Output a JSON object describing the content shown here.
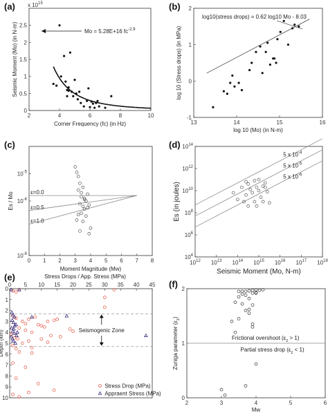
{
  "panel_labels": [
    "(a)",
    "(b)",
    "(c)",
    "(d)",
    "(e)",
    "(f)"
  ],
  "chart_data": [
    {
      "id": "a",
      "type": "scatter",
      "xlabel": "Corner Frequency (fc) (in Hz)",
      "ylabel": "Seismic Moment (Mo) (in N-m)",
      "xlim": [
        2,
        10
      ],
      "ylim": [
        0,
        3000000000000000.0
      ],
      "xticks": [
        "2",
        "4",
        "6",
        "8",
        "10"
      ],
      "yticks": [
        "0",
        "0.5",
        "1",
        "1.5",
        "2",
        "2.5"
      ],
      "top_label": "x 10",
      "top_label_exp": "15",
      "annotation": "Mo = 5.28E+16 fc",
      "annotation_exp": "-2.9",
      "x": [
        3.6,
        3.8,
        4.0,
        4.1,
        4.3,
        4.4,
        4.5,
        4.5,
        4.6,
        4.6,
        4.7,
        4.8,
        4.9,
        5.0,
        5.1,
        5.2,
        5.3,
        5.4,
        5.6,
        5.8,
        5.9,
        6.0,
        6.1,
        6.2,
        6.3,
        6.4,
        6.5,
        6.6,
        7.0,
        7.4
      ],
      "y": [
        0.78,
        0.73,
        2.5,
        1.0,
        1.6,
        0.85,
        0.42,
        0.6,
        0.58,
        0.68,
        1.7,
        0.55,
        0.42,
        0.9,
        0.5,
        0.33,
        0.55,
        0.22,
        0.12,
        0.28,
        0.65,
        0.1,
        0.26,
        0.2,
        0.08,
        0.22,
        0.28,
        0.12,
        0.08,
        0.42
      ],
      "fit": {
        "coef": 52.8,
        "exp": -2.9
      }
    },
    {
      "id": "b",
      "type": "scatter",
      "xlabel": "log 10 (Mo)  (in N-m)",
      "ylabel": "log 10 (Stress drops) (in MPa)",
      "xlim": [
        13,
        16
      ],
      "ylim": [
        -1,
        2
      ],
      "xticks": [
        "13",
        "14",
        "15",
        "16"
      ],
      "yticks": [
        "-1",
        "0",
        "1",
        "2"
      ],
      "annotation": "log10(stress drops) = 0.62 log10 Mo - 8.03",
      "x": [
        13.45,
        13.7,
        13.78,
        13.85,
        13.9,
        13.95,
        14.05,
        14.12,
        14.3,
        14.35,
        14.45,
        14.55,
        14.6,
        14.68,
        14.72,
        14.78,
        14.85,
        14.88,
        14.92,
        14.95,
        15.02,
        15.1,
        15.2,
        15.3,
        15.35,
        15.45
      ],
      "y": [
        -0.72,
        -0.28,
        -0.35,
        -0.05,
        0.15,
        -0.15,
        -0.05,
        -0.25,
        0.3,
        0.5,
        0.8,
        0.95,
        0.22,
        0.8,
        1.05,
        0.45,
        0.62,
        0.62,
        0.5,
        1.15,
        1.35,
        1.65,
        1.0,
        1.45,
        1.55,
        1.5
      ],
      "fit": {
        "slope": 0.62,
        "intercept": -8.03
      }
    },
    {
      "id": "c",
      "type": "scatter",
      "xlabel": "Moment Magnitude (Mw)",
      "ylabel": "Es / Mo",
      "xlim": [
        0,
        8
      ],
      "ylim_log": [
        -8,
        -4
      ],
      "xticks": [
        "0",
        "1",
        "2",
        "3",
        "4",
        "5",
        "6",
        "7",
        "8"
      ],
      "yticks": [
        "10",
        "10",
        "10"
      ],
      "ytick_exps": [
        "-5",
        "-6",
        "-8"
      ],
      "ytick_vals": [
        -5,
        -6,
        -8
      ],
      "lines": [
        {
          "label": "ε=0.0",
          "y0": -5.8,
          "y1": -5.8
        },
        {
          "label": "ε=0.5",
          "y0": -6.35,
          "y1": -5.8
        },
        {
          "label": "ε=1.0",
          "y0": -6.85,
          "y1": -5.8
        }
      ],
      "x": [
        3.0,
        3.1,
        3.2,
        3.3,
        3.2,
        3.4,
        3.5,
        3.4,
        3.6,
        3.7,
        3.3,
        3.5,
        3.8,
        3.9,
        3.6,
        3.4,
        3.2,
        3.7,
        3.1,
        3.5,
        4.0,
        3.3,
        3.9,
        3.6,
        3.8
      ],
      "y": [
        -4.75,
        -4.95,
        -5.1,
        -5.35,
        -5.6,
        -5.7,
        -5.5,
        -5.85,
        -5.9,
        -6.0,
        -6.1,
        -6.2,
        -6.25,
        -6.15,
        -6.3,
        -6.45,
        -6.5,
        -6.55,
        -6.7,
        -6.75,
        -7.0,
        -7.1,
        -7.2,
        -5.95,
        -5.75
      ]
    },
    {
      "id": "d",
      "type": "scatter",
      "xlabel": "Seismic Moment (Mo, N-m)",
      "ylabel": "Es (in joules)",
      "xlim_log": [
        12,
        18
      ],
      "ylim_log": [
        4,
        14
      ],
      "xticks_exp": [
        "12",
        "13",
        "14",
        "15",
        "16",
        "17",
        "18"
      ],
      "yticks_exp": [
        "4",
        "6",
        "8",
        "10",
        "12",
        "14"
      ],
      "tick_base": "10",
      "lines": [
        {
          "label": "5 x 10",
          "exp": "-4",
          "log_ratio": -3.3
        },
        {
          "label": "5 x 10",
          "exp": "-5",
          "log_ratio": -4.3
        },
        {
          "label": "5 x 10",
          "exp": "-6",
          "log_ratio": -5.3
        }
      ],
      "x": [
        13.8,
        14.0,
        14.2,
        14.3,
        14.4,
        14.5,
        14.5,
        14.6,
        14.7,
        14.8,
        14.8,
        14.9,
        15.0,
        15.0,
        15.1,
        15.2,
        15.2,
        15.3,
        15.4,
        15.5,
        14.4,
        14.9,
        15.3
      ],
      "y": [
        9.8,
        9.2,
        10.3,
        9.0,
        9.6,
        10.6,
        8.6,
        10.1,
        9.8,
        10.9,
        9.0,
        10.3,
        10.0,
        11.0,
        9.4,
        10.4,
        9.0,
        10.7,
        9.9,
        8.9,
        10.8,
        8.6,
        10.3
      ]
    },
    {
      "id": "e",
      "type": "scatter",
      "top_xlabel": "Stress Drops / App. Stress (MPa)",
      "ylabel": "Depth (km)",
      "xlim": [
        0,
        45
      ],
      "ylim": [
        0,
        10
      ],
      "xticks": [
        "0",
        "5",
        "10",
        "15",
        "20",
        "25",
        "30",
        "35",
        "40",
        "45"
      ],
      "yticks": [
        "0",
        "1",
        "2",
        "3",
        "4",
        "5",
        "6",
        "7",
        "8",
        "9",
        "10"
      ],
      "zone_label": "Seismogenic Zone",
      "zone_top": 2.3,
      "zone_bottom": 5.3,
      "legend": [
        "Stress Drop (MPa)",
        "Appraent Stress (MPa)"
      ],
      "stress_drop_x": [
        1,
        2,
        3,
        1,
        2,
        4,
        5,
        6,
        8,
        10,
        12,
        14,
        3,
        5,
        7,
        9,
        11,
        15,
        19,
        0.5,
        1.5,
        2.5,
        6,
        13,
        20,
        30,
        33,
        1,
        2,
        3,
        4,
        7,
        10,
        16,
        1,
        5,
        7,
        12,
        30,
        2,
        9,
        14,
        1,
        3,
        6
      ],
      "stress_drop_y": [
        0.2,
        0.3,
        0.1,
        2.5,
        2.7,
        3.0,
        3.2,
        2.8,
        2.6,
        3.4,
        3.0,
        2.9,
        3.6,
        3.8,
        4.0,
        3.3,
        3.5,
        2.8,
        3.7,
        4.2,
        4.5,
        4.6,
        4.8,
        4.3,
        3.9,
        1.7,
        0.1,
        5.2,
        5.5,
        5.8,
        5.0,
        5.4,
        4.6,
        4.4,
        6.8,
        7.2,
        5.9,
        4.9,
        0.8,
        8.2,
        8.7,
        9.3,
        9.7,
        9.9,
        9.5
      ],
      "app_stress_x": [
        0.5,
        1,
        1.5,
        0.8,
        1.2,
        2,
        0.6,
        1.0,
        1.4,
        2.2,
        0.9,
        1.1,
        1.8,
        0.7,
        1.3,
        0.5,
        3,
        7,
        18,
        43,
        1.6,
        2.4
      ],
      "app_stress_y": [
        0.1,
        2.4,
        2.6,
        2.9,
        3.1,
        3.3,
        3.6,
        3.9,
        4.1,
        4.3,
        4.6,
        4.8,
        5.0,
        2.2,
        3.7,
        4.4,
        0.1,
        2.6,
        2.5,
        4.3,
        3.4,
        4.0
      ]
    },
    {
      "id": "f",
      "type": "scatter",
      "xlabel": "Mw",
      "ylabel": "Zuniga parameter (ε",
      "ylabel_sub": "z",
      "ylabel_end": ")",
      "xlim": [
        2,
        6
      ],
      "ylim": [
        0,
        2
      ],
      "xticks": [
        "2",
        "3",
        "4",
        "5",
        "6"
      ],
      "yticks": [
        "0",
        "1",
        "2"
      ],
      "hline": 1,
      "upper_label": "Frictional overshoot (ε",
      "upper_label_end": " > 1)",
      "lower_label": "Partial stress drop (ε",
      "lower_label_end": " < 1)",
      "label_sub": "z",
      "x": [
        3.5,
        3.6,
        3.7,
        3.8,
        3.9,
        4.0,
        4.1,
        3.6,
        3.9,
        4.0,
        4.2,
        3.5,
        3.7,
        3.8,
        3.9,
        3.4,
        3.6,
        3.7,
        3.5,
        3.8,
        3.9,
        3.4,
        3.3,
        3.8,
        3.9,
        4.0,
        3.0,
        3.1,
        3.7,
        4.0
      ],
      "y": [
        1.95,
        1.95,
        1.95,
        1.96,
        1.97,
        1.98,
        1.97,
        1.9,
        1.92,
        1.93,
        1.98,
        1.85,
        1.88,
        1.82,
        1.7,
        1.75,
        1.72,
        1.6,
        1.45,
        1.55,
        1.35,
        1.2,
        1.4,
        1.62,
        1.3,
        1.92,
        0.15,
        0.05,
        0.22,
        0.62
      ]
    }
  ]
}
